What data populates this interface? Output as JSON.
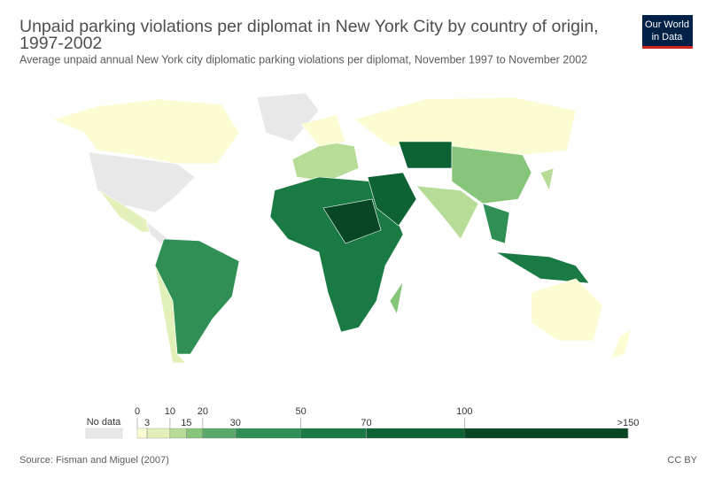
{
  "chart_data": {
    "type": "map",
    "title": "Unpaid parking violations per diplomat in New York City by country of origin,",
    "title_line2": "1997-2002",
    "subtitle": "Average unpaid annual New York city diplomatic parking violations per diplomat, November 1997 to November 2002",
    "logo": [
      "Our World",
      "in Data"
    ],
    "legend": {
      "no_data_label": "No data",
      "no_data_color": "#e8e8e8",
      "xlim": [
        0,
        150
      ],
      "ticks": [
        0,
        3,
        10,
        15,
        20,
        30,
        50,
        70,
        100,
        {
          "value": 150,
          "label": ">150"
        }
      ],
      "colors": [
        "#fbfcd2",
        "#e2f1b9",
        "#b7dc97",
        "#87c57a",
        "#5aa96a",
        "#2f8f55",
        "#1a7a44",
        "#0d6234",
        "#074725"
      ]
    },
    "source": "Source: Fisman and Miguel (2007)",
    "license": "CC BY"
  }
}
